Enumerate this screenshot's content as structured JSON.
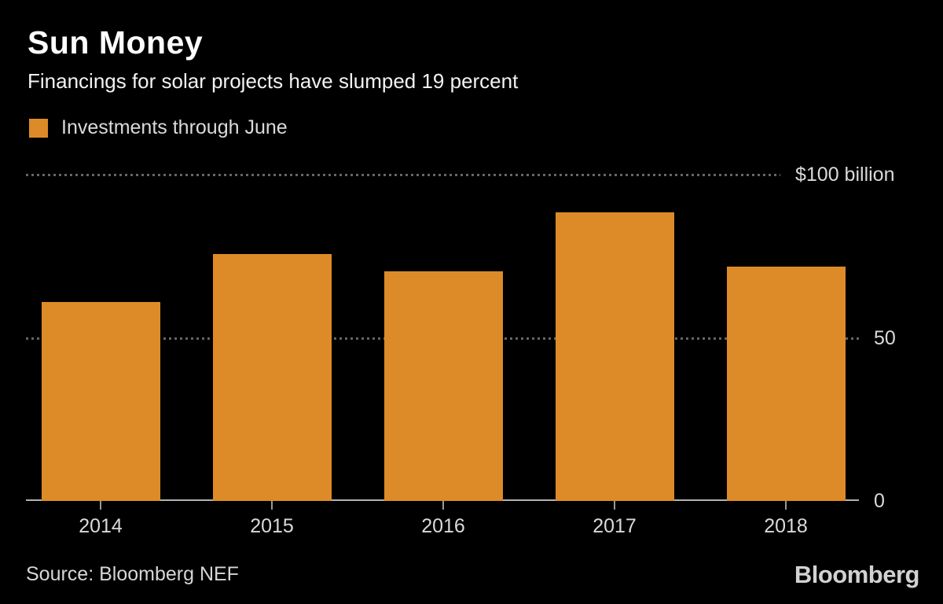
{
  "chart_data": {
    "type": "bar",
    "title": "Sun Money",
    "subtitle": "Financings for solar projects have slumped 19 percent",
    "legend_label": "Investments through June",
    "legend_position": "top-left",
    "categories": [
      "2014",
      "2015",
      "2016",
      "2017",
      "2018"
    ],
    "values": [
      61,
      75.7,
      70.4,
      88.4,
      71.8
    ],
    "value_unit": "$ billion",
    "ylim": [
      0,
      100
    ],
    "yticks": [
      {
        "value": 100,
        "label": "$100 billion"
      },
      {
        "value": 50,
        "label": "50"
      },
      {
        "value": 0,
        "label": "0"
      }
    ],
    "grid": "dotted horizontal gridlines at 50 and 100",
    "bar_color": "#dd8b28",
    "background_color": "#000000"
  },
  "footer": {
    "source": "Source: Bloomberg NEF",
    "brand": "Bloomberg"
  }
}
